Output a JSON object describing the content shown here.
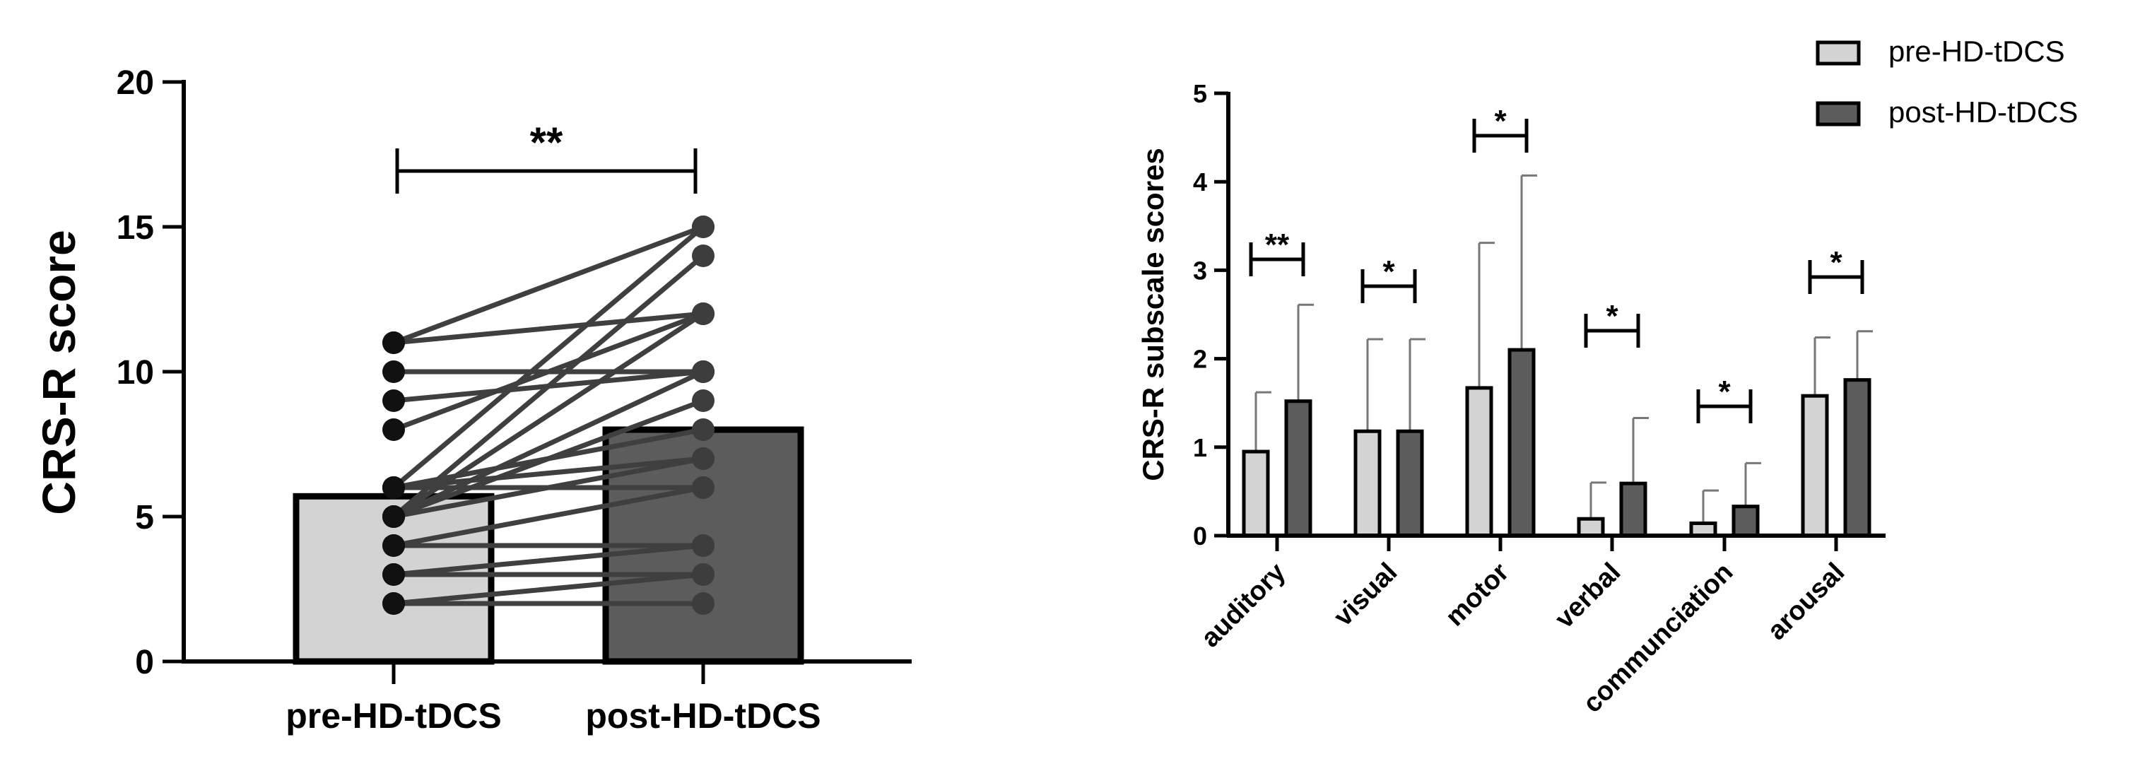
{
  "chart_data": [
    {
      "type": "bar",
      "ylabel": "CRS-R score",
      "ylim": [
        0,
        20
      ],
      "yticks": [
        0,
        5,
        10,
        15,
        20
      ],
      "categories": [
        "pre-HD-tDCS",
        "post-HD-tDCS"
      ],
      "values": [
        5.7,
        8.0
      ],
      "colors": [
        "#d3d3d3",
        "#5c5c5c"
      ],
      "significance": "**",
      "paired_points": [
        [
          2,
          2
        ],
        [
          2,
          3
        ],
        [
          3,
          3
        ],
        [
          3,
          4
        ],
        [
          4,
          4
        ],
        [
          4,
          6
        ],
        [
          5,
          7
        ],
        [
          5,
          9
        ],
        [
          5,
          10
        ],
        [
          5,
          12
        ],
        [
          5,
          14
        ],
        [
          6,
          15
        ],
        [
          6,
          8
        ],
        [
          6,
          7
        ],
        [
          6,
          6
        ],
        [
          8,
          12
        ],
        [
          9,
          10
        ],
        [
          10,
          10
        ],
        [
          11,
          12
        ],
        [
          11,
          15
        ]
      ]
    },
    {
      "type": "bar",
      "ylabel": "CRS-R subscale scores",
      "ylim": [
        0,
        5
      ],
      "yticks": [
        0,
        1,
        2,
        3,
        4,
        5
      ],
      "categories": [
        "auditory",
        "visual",
        "motor",
        "verbal",
        "communciation",
        "arousal"
      ],
      "series": [
        {
          "name": "pre-HD-tDCS",
          "color": "#d3d3d3",
          "values": [
            0.95,
            1.18,
            1.67,
            0.19,
            0.14,
            1.58
          ],
          "error": [
            0.67,
            1.04,
            1.64,
            0.41,
            0.37,
            0.66
          ]
        },
        {
          "name": "post-HD-tDCS",
          "color": "#5c5c5c",
          "values": [
            1.52,
            1.18,
            2.1,
            0.59,
            0.33,
            1.76
          ],
          "error": [
            1.09,
            1.04,
            1.97,
            0.74,
            0.49,
            0.55
          ]
        }
      ],
      "significance": [
        "**",
        "*",
        "*",
        "*",
        "*",
        "*"
      ],
      "legend": "top-right"
    }
  ]
}
